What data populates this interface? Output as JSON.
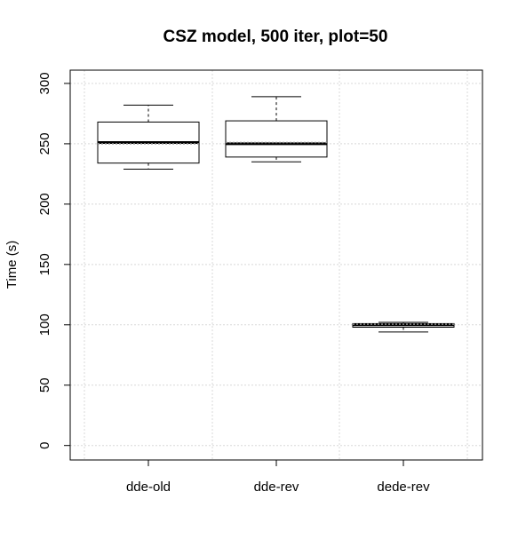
{
  "chart_data": {
    "type": "box",
    "title": "CSZ model, 500 iter, plot=50",
    "xlabel": "",
    "ylabel": "Time (s)",
    "ylim": [
      -12,
      311
    ],
    "yticks": [
      0,
      50,
      100,
      150,
      200,
      250,
      300
    ],
    "grid": true,
    "categories": [
      "dde-old",
      "dde-rev",
      "dede-rev"
    ],
    "boxes": [
      {
        "category": "dde-old",
        "min": 229,
        "q1": 234,
        "median": 251,
        "mean": 250,
        "q3": 268,
        "max": 282
      },
      {
        "category": "dde-rev",
        "min": 235,
        "q1": 239,
        "median": 250,
        "mean": 251,
        "q3": 269,
        "max": 289
      },
      {
        "category": "dede-rev",
        "min": 94,
        "q1": 98,
        "median": 100,
        "mean": 100.5,
        "q3": 101,
        "max": 102
      }
    ]
  }
}
